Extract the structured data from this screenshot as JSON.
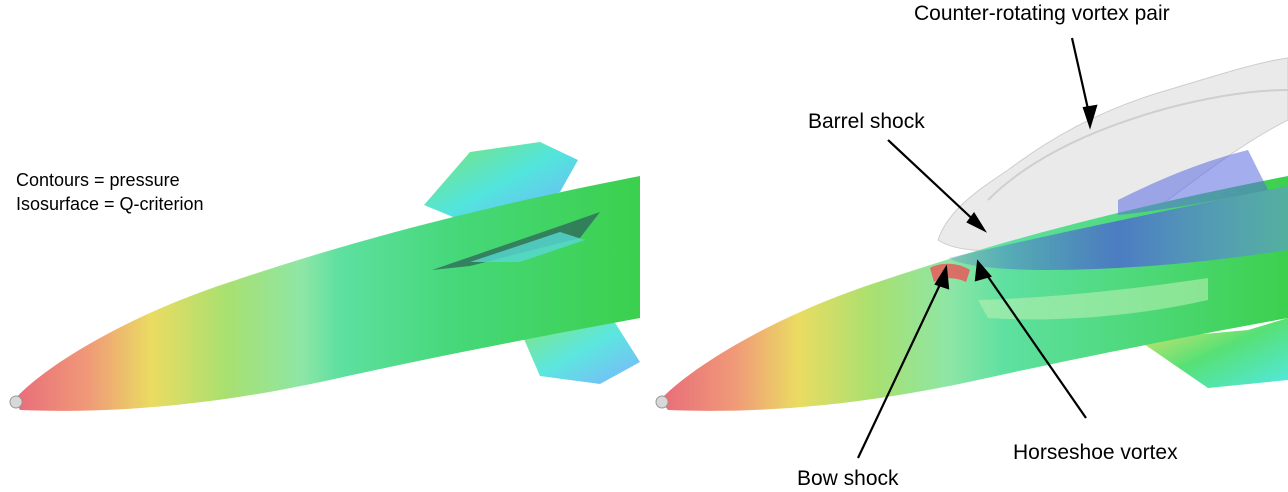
{
  "legend": {
    "contours": "Contours = pressure",
    "isosurface": "Isosurface = Q-criterion"
  },
  "annotations": {
    "counter_rotating": "Counter-rotating vortex pair",
    "barrel_shock": "Barrel shock",
    "horseshoe_vortex": "Horseshoe vortex",
    "bow_shock": "Bow shock"
  },
  "colors": {
    "nose_red": "#e8707a",
    "yellow": "#e8e25a",
    "green": "#3cd45a",
    "cyan": "#3ee6e0",
    "blue": "#4a5cd8",
    "vortex_gray": "#e6e6e6"
  }
}
